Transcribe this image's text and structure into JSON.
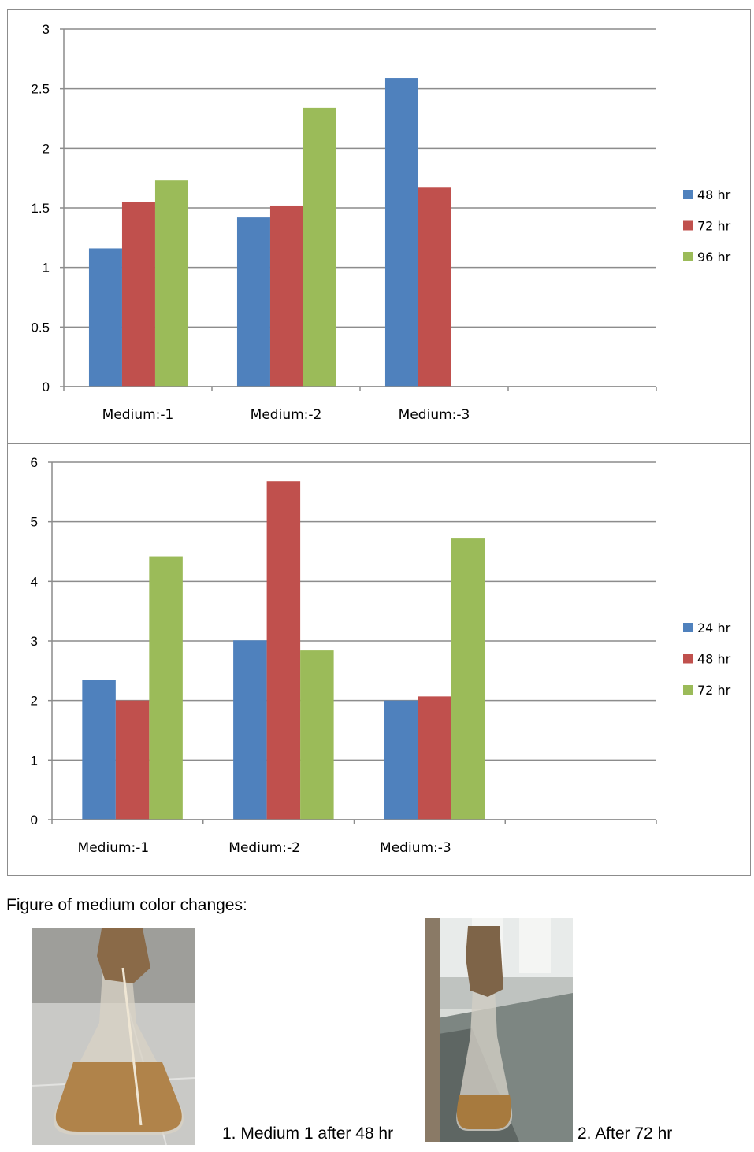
{
  "chart_data": [
    {
      "type": "bar",
      "categories": [
        "Medium:-1",
        "Medium:-2",
        "Medium:-3"
      ],
      "series": [
        {
          "name": "48 hr",
          "values": [
            1.16,
            1.42,
            2.59
          ],
          "color": "#4f81bd"
        },
        {
          "name": "72 hr",
          "values": [
            1.55,
            1.52,
            1.67
          ],
          "color": "#c0504d"
        },
        {
          "name": "96 hr",
          "values": [
            1.73,
            2.34,
            null
          ],
          "color": "#9bbb59"
        }
      ],
      "ylim": [
        0,
        3
      ],
      "yticks": [
        "0",
        "0.5",
        "1",
        "1.5",
        "2",
        "2.5",
        "3"
      ],
      "grid": true,
      "legend": "right"
    },
    {
      "type": "bar",
      "categories": [
        "Medium:-1",
        "Medium:-2",
        "Medium:-3"
      ],
      "series": [
        {
          "name": "24 hr",
          "values": [
            2.35,
            3.01,
            2.0
          ],
          "color": "#4f81bd"
        },
        {
          "name": "48 hr",
          "values": [
            2.0,
            5.68,
            2.07
          ],
          "color": "#c0504d"
        },
        {
          "name": "72 hr",
          "values": [
            4.42,
            2.84,
            4.73
          ],
          "color": "#9bbb59"
        }
      ],
      "ylim": [
        0,
        6
      ],
      "yticks": [
        "0",
        "1",
        "2",
        "3",
        "4",
        "5",
        "6"
      ],
      "grid": true,
      "legend": "right"
    }
  ],
  "figure": {
    "title": "Figure of medium color changes:",
    "captions": [
      "1. Medium 1 after 48 hr",
      "2. After 72 hr"
    ]
  }
}
